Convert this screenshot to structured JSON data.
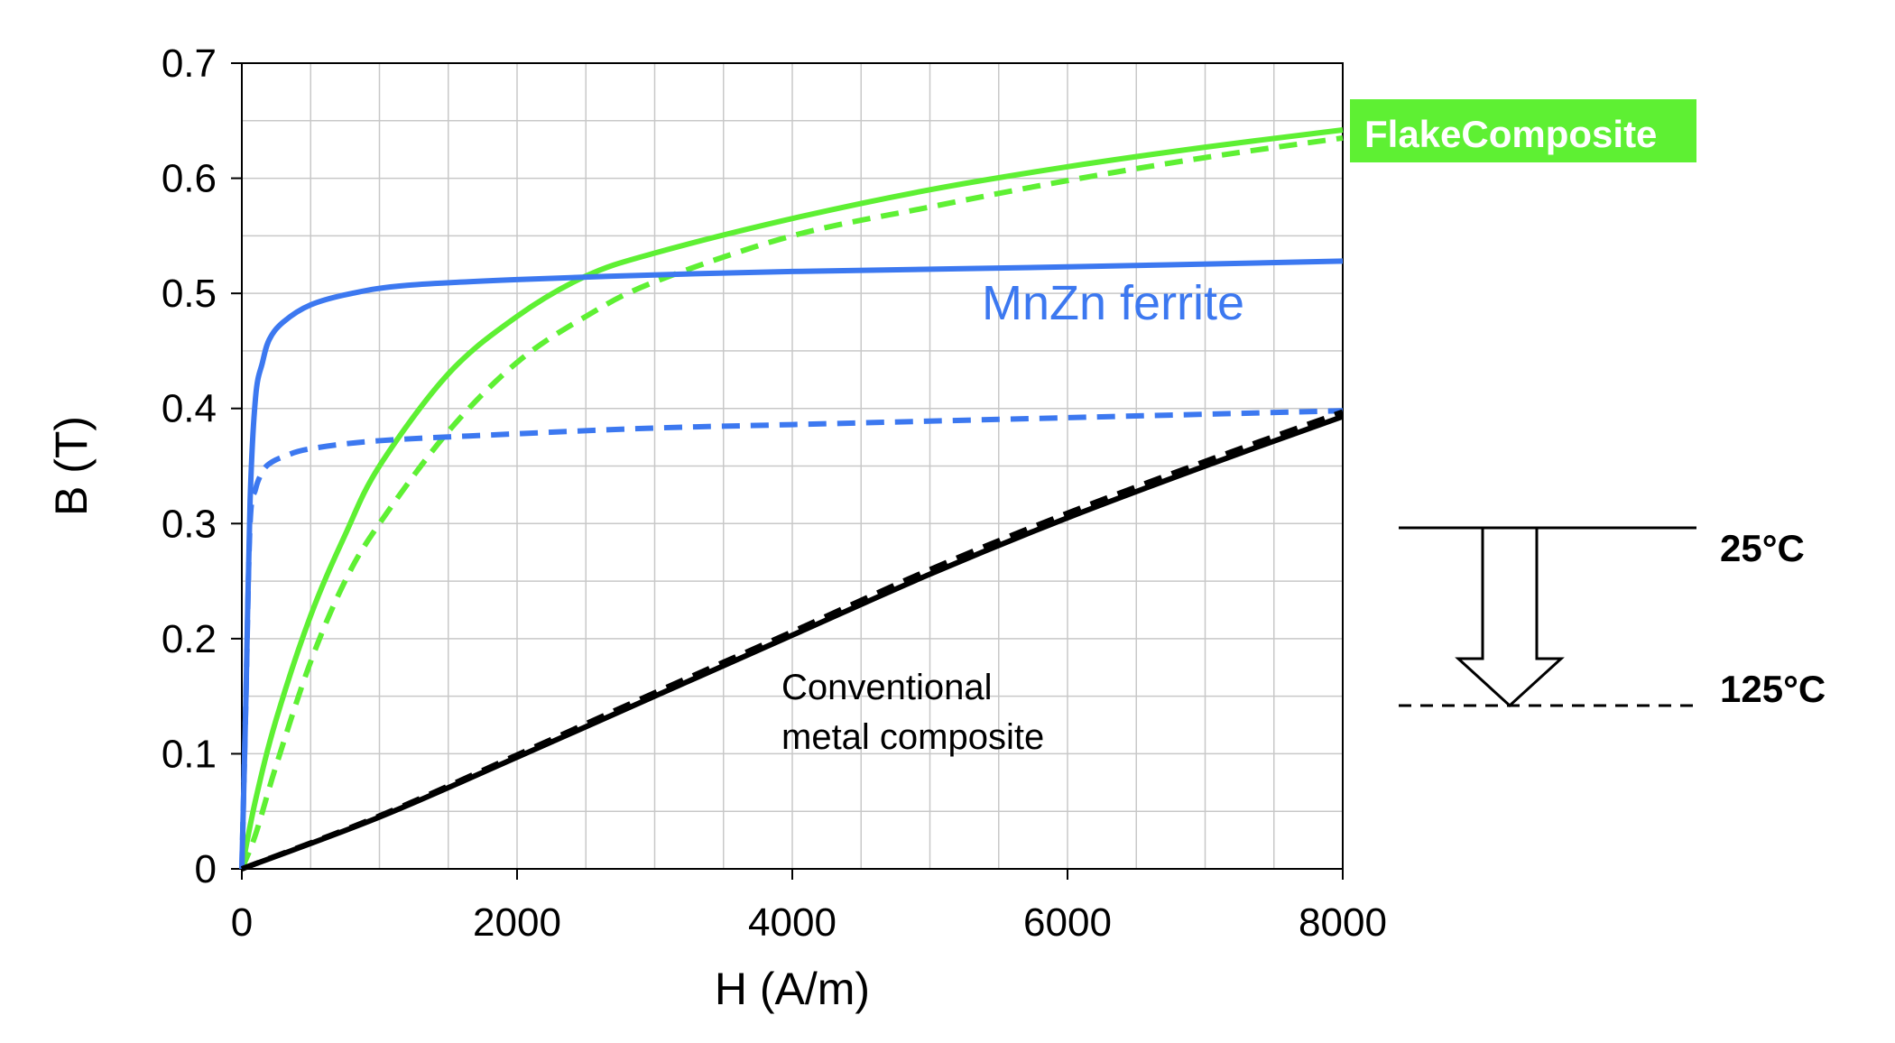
{
  "chart_data": {
    "type": "line",
    "xlabel": "H (A/m)",
    "ylabel": "B (T)",
    "xlim": [
      0,
      8000
    ],
    "ylim": [
      0,
      0.7
    ],
    "x_ticks": [
      "0",
      "2000",
      "4000",
      "6000",
      "8000"
    ],
    "y_ticks": [
      "0",
      "0.1",
      "0.2",
      "0.3",
      "0.4",
      "0.5",
      "0.6",
      "0.7"
    ],
    "grid": true,
    "colors": {
      "flake": "#5ef033",
      "ferrite": "#3c78f0",
      "conventional": "#000000"
    },
    "series": [
      {
        "key": "flake_25",
        "group": "FlakeComposite",
        "temperature": "25°C",
        "style": "solid",
        "color": "#5ef033",
        "x": [
          0,
          100,
          250,
          500,
          750,
          1000,
          1500,
          2000,
          2500,
          3000,
          4000,
          5000,
          6000,
          7000,
          8000
        ],
        "y": [
          0,
          0.06,
          0.13,
          0.22,
          0.29,
          0.35,
          0.43,
          0.48,
          0.515,
          0.535,
          0.565,
          0.59,
          0.61,
          0.627,
          0.642
        ]
      },
      {
        "key": "flake_125",
        "group": "FlakeComposite",
        "temperature": "125°C",
        "style": "dashed",
        "color": "#5ef033",
        "x": [
          0,
          100,
          250,
          500,
          750,
          1000,
          1500,
          2000,
          2500,
          3000,
          4000,
          5000,
          6000,
          7000,
          8000
        ],
        "y": [
          0,
          0.03,
          0.09,
          0.18,
          0.25,
          0.3,
          0.38,
          0.44,
          0.48,
          0.51,
          0.55,
          0.575,
          0.598,
          0.618,
          0.635
        ]
      },
      {
        "key": "ferrite_25",
        "group": "MnZn ferrite",
        "temperature": "25°C",
        "style": "solid",
        "color": "#3c78f0",
        "x": [
          0,
          30,
          60,
          100,
          150,
          200,
          300,
          500,
          800,
          1200,
          2000,
          3000,
          4000,
          6000,
          8000
        ],
        "y": [
          0,
          0.15,
          0.32,
          0.41,
          0.44,
          0.46,
          0.475,
          0.49,
          0.5,
          0.507,
          0.512,
          0.516,
          0.519,
          0.523,
          0.528
        ]
      },
      {
        "key": "ferrite_125",
        "group": "MnZn ferrite",
        "temperature": "125°C",
        "style": "dashed",
        "color": "#3c78f0",
        "x": [
          0,
          30,
          60,
          100,
          150,
          200,
          300,
          500,
          1000,
          2000,
          3000,
          4000,
          6000,
          8000
        ],
        "y": [
          0,
          0.15,
          0.3,
          0.33,
          0.345,
          0.352,
          0.358,
          0.365,
          0.372,
          0.378,
          0.383,
          0.386,
          0.392,
          0.398
        ]
      },
      {
        "key": "conv_25",
        "group": "Conventional metal composite",
        "temperature": "25°C",
        "style": "solid",
        "color": "#000000",
        "x": [
          0,
          1000,
          2000,
          3000,
          4000,
          5000,
          6000,
          7000,
          8000
        ],
        "y": [
          0,
          0.045,
          0.097,
          0.15,
          0.203,
          0.256,
          0.305,
          0.35,
          0.393
        ]
      },
      {
        "key": "conv_125",
        "group": "Conventional metal composite",
        "temperature": "125°C",
        "style": "dashed",
        "color": "#000000",
        "x": [
          0,
          1000,
          2000,
          3000,
          4000,
          5000,
          6000,
          7000,
          8000
        ],
        "y": [
          0,
          0.046,
          0.099,
          0.153,
          0.206,
          0.26,
          0.309,
          0.354,
          0.397
        ]
      }
    ],
    "annotations": {
      "flake": "FlakeComposite",
      "ferrite": "MnZn ferrite",
      "conventional_line1": "Conventional",
      "conventional_line2": "metal composite"
    },
    "legend": {
      "solid_label": "25°C",
      "dashed_label": "125°C"
    }
  }
}
